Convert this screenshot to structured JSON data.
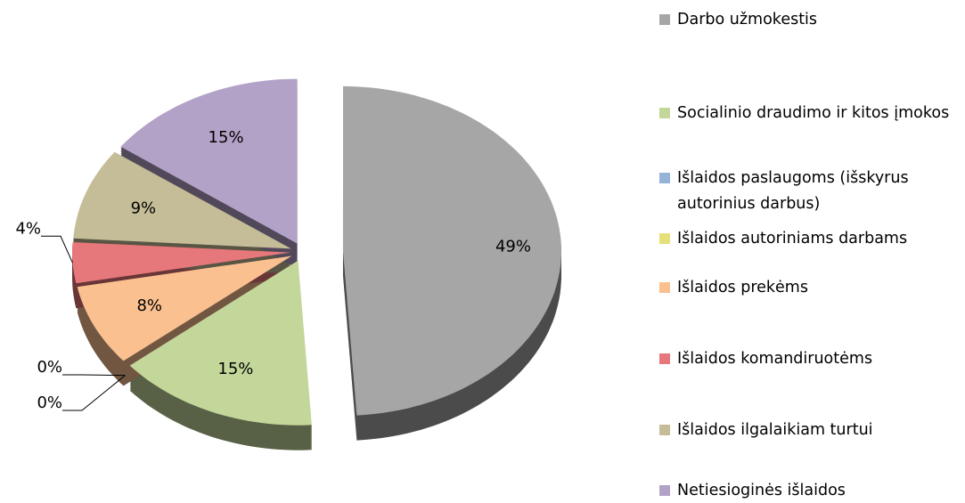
{
  "chart_data": {
    "type": "pie",
    "categories": [
      "Darbo užmokestis",
      "Socialinio draudimo ir kitos įmokos",
      "Išlaidos paslaugoms (išskyrus autorinius darbus)",
      "Išlaidos autoriniams darbams",
      "Išlaidos prekėms",
      "Išlaidos komandiruotėms",
      "Išlaidos ilgalaikiam turtui",
      "Netiesioginės išlaidos"
    ],
    "values": [
      49,
      15,
      0,
      0,
      8,
      4,
      9,
      15
    ],
    "colors": [
      "#a6a6a6",
      "#c4d79b",
      "#95b3d7",
      "#e6e07a",
      "#fac090",
      "#e6777a",
      "#c4bd97",
      "#b3a2c7"
    ],
    "legend": "right"
  }
}
